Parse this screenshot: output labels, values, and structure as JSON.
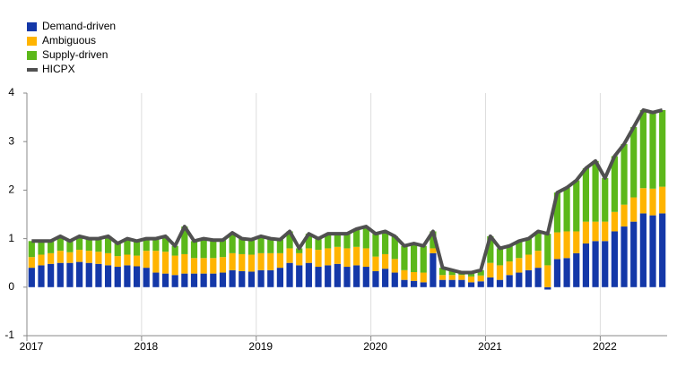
{
  "chart_data": {
    "type": "bar",
    "stacked": true,
    "categories": [
      "2017",
      null,
      null,
      null,
      null,
      null,
      null,
      null,
      null,
      null,
      null,
      null,
      "2018",
      null,
      null,
      null,
      null,
      null,
      null,
      null,
      null,
      null,
      null,
      null,
      "2019",
      null,
      null,
      null,
      null,
      null,
      null,
      null,
      null,
      null,
      null,
      null,
      "2020",
      null,
      null,
      null,
      null,
      null,
      null,
      null,
      null,
      null,
      null,
      null,
      "2021",
      null,
      null,
      null,
      null,
      null,
      null,
      null,
      null,
      null,
      null,
      null,
      "2022",
      null,
      null,
      null,
      null,
      null,
      null
    ],
    "series": [
      {
        "name": "Demand-driven",
        "color": "#1438a8",
        "values": [
          0.4,
          0.45,
          0.48,
          0.5,
          0.5,
          0.52,
          0.5,
          0.48,
          0.45,
          0.42,
          0.45,
          0.43,
          0.4,
          0.3,
          0.28,
          0.25,
          0.28,
          0.28,
          0.28,
          0.28,
          0.3,
          0.35,
          0.33,
          0.32,
          0.35,
          0.35,
          0.4,
          0.5,
          0.45,
          0.5,
          0.42,
          0.45,
          0.48,
          0.42,
          0.45,
          0.42,
          0.33,
          0.38,
          0.3,
          0.15,
          0.13,
          0.1,
          0.7,
          0.15,
          0.15,
          0.15,
          0.1,
          0.12,
          0.2,
          0.15,
          0.25,
          0.3,
          0.35,
          0.4,
          -0.05,
          0.58,
          0.6,
          0.7,
          0.9,
          0.95,
          0.95,
          1.15,
          1.25,
          1.35,
          1.52,
          1.48,
          1.52
        ]
      },
      {
        "name": "Ambiguous",
        "color": "#ffb400",
        "values": [
          0.22,
          0.22,
          0.22,
          0.25,
          0.22,
          0.25,
          0.25,
          0.25,
          0.25,
          0.22,
          0.22,
          0.22,
          0.35,
          0.45,
          0.45,
          0.4,
          0.4,
          0.32,
          0.32,
          0.32,
          0.32,
          0.35,
          0.35,
          0.35,
          0.35,
          0.35,
          0.3,
          0.3,
          0.25,
          0.3,
          0.35,
          0.35,
          0.35,
          0.38,
          0.38,
          0.38,
          0.3,
          0.3,
          0.28,
          0.2,
          0.18,
          0.2,
          0.1,
          0.1,
          0.1,
          0.1,
          0.12,
          0.12,
          0.3,
          0.3,
          0.28,
          0.3,
          0.32,
          0.35,
          0.45,
          0.55,
          0.55,
          0.45,
          0.45,
          0.4,
          0.4,
          0.4,
          0.45,
          0.5,
          0.52,
          0.55,
          0.55
        ]
      },
      {
        "name": "Supply-driven",
        "color": "#5cb81a",
        "values": [
          0.33,
          0.28,
          0.25,
          0.3,
          0.23,
          0.28,
          0.25,
          0.27,
          0.35,
          0.26,
          0.33,
          0.3,
          0.25,
          0.25,
          0.32,
          0.2,
          0.57,
          0.35,
          0.4,
          0.37,
          0.35,
          0.42,
          0.32,
          0.31,
          0.35,
          0.3,
          0.28,
          0.35,
          0.1,
          0.3,
          0.23,
          0.3,
          0.27,
          0.3,
          0.37,
          0.45,
          0.47,
          0.47,
          0.47,
          0.5,
          0.59,
          0.55,
          0.35,
          0.15,
          0.1,
          0.05,
          0.08,
          0.11,
          0.55,
          0.35,
          0.32,
          0.35,
          0.33,
          0.4,
          0.65,
          0.82,
          0.9,
          1.05,
          1.1,
          1.25,
          0.9,
          1.15,
          1.25,
          1.45,
          1.61,
          1.57,
          1.58
        ]
      },
      {
        "name": "HICPX",
        "color": "#505050",
        "type": "line",
        "values": [
          0.95,
          0.95,
          0.95,
          1.05,
          0.95,
          1.05,
          1.0,
          1.0,
          1.05,
          0.9,
          1.0,
          0.95,
          1.0,
          1.0,
          1.05,
          0.85,
          1.25,
          0.95,
          1.0,
          0.97,
          0.97,
          1.12,
          1.0,
          0.98,
          1.05,
          1.0,
          0.98,
          1.15,
          0.8,
          1.1,
          1.0,
          1.1,
          1.1,
          1.1,
          1.2,
          1.25,
          1.1,
          1.15,
          1.05,
          0.85,
          0.9,
          0.85,
          1.15,
          0.4,
          0.35,
          0.3,
          0.3,
          0.35,
          1.05,
          0.8,
          0.85,
          0.95,
          1.0,
          1.15,
          1.1,
          1.95,
          2.05,
          2.2,
          2.45,
          2.6,
          2.25,
          2.7,
          2.95,
          3.3,
          3.65,
          3.6,
          3.65
        ]
      }
    ],
    "ylim": [
      -1,
      4
    ],
    "yticks": [
      -1,
      0,
      1,
      2,
      3,
      4
    ],
    "legend": "top-left"
  }
}
